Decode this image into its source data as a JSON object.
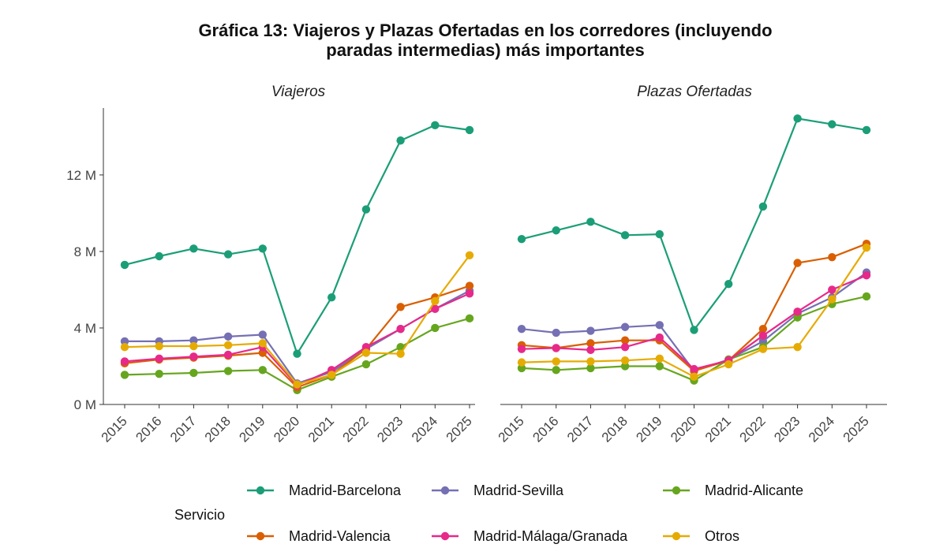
{
  "chart_data": {
    "type": "line",
    "title_lines": [
      "Gráfica 13: Viajeros y Plazas Ofertadas en los corredores (incluyendo",
      "paradas intermedias) más importantes"
    ],
    "ylim": [
      0,
      15.5
    ],
    "y_ticks": [
      0,
      4,
      8,
      12
    ],
    "y_tick_labels": [
      "0 M",
      "4 M",
      "8 M",
      "12 M"
    ],
    "x": [
      "2015",
      "2016",
      "2017",
      "2018",
      "2019",
      "2020",
      "2021",
      "2022",
      "2023",
      "2024",
      "2025"
    ],
    "grid": false,
    "legend": {
      "title": "Servicio",
      "position": "bottom",
      "items": [
        "Madrid-Barcelona",
        "Madrid-Sevilla",
        "Madrid-Alicante",
        "Madrid-Valencia",
        "Madrid-Málaga/Granada",
        "Otros"
      ]
    },
    "colors": {
      "Madrid-Barcelona": "#1b9e77",
      "Madrid-Sevilla": "#7570b3",
      "Madrid-Alicante": "#66a61e",
      "Madrid-Valencia": "#d95f02",
      "Madrid-Málaga/Granada": "#e7298a",
      "Otros": "#e6ab02"
    },
    "panels": [
      {
        "title": "Viajeros",
        "series": [
          {
            "name": "Madrid-Barcelona",
            "values": [
              7.3,
              7.75,
              8.15,
              7.85,
              8.15,
              2.65,
              5.6,
              10.2,
              13.8,
              14.6,
              14.35
            ]
          },
          {
            "name": "Madrid-Sevilla",
            "values": [
              3.3,
              3.3,
              3.35,
              3.55,
              3.65,
              1.1,
              1.7,
              2.9,
              3.95,
              5.0,
              5.95
            ]
          },
          {
            "name": "Madrid-Alicante",
            "values": [
              1.55,
              1.6,
              1.65,
              1.75,
              1.8,
              0.75,
              1.45,
              2.1,
              3.0,
              4.0,
              4.5
            ]
          },
          {
            "name": "Madrid-Valencia",
            "values": [
              2.15,
              2.35,
              2.45,
              2.55,
              2.7,
              0.9,
              1.55,
              2.9,
              5.1,
              5.6,
              6.2
            ]
          },
          {
            "name": "Madrid-Málaga/Granada",
            "values": [
              2.25,
              2.4,
              2.5,
              2.6,
              3.0,
              1.0,
              1.8,
              3.0,
              3.95,
              5.0,
              5.8
            ]
          },
          {
            "name": "Otros",
            "values": [
              3.0,
              3.05,
              3.05,
              3.1,
              3.2,
              1.05,
              1.55,
              2.7,
              2.65,
              5.4,
              7.8
            ]
          }
        ]
      },
      {
        "title": "Plazas Ofertadas",
        "series": [
          {
            "name": "Madrid-Barcelona",
            "values": [
              8.65,
              9.1,
              9.55,
              8.85,
              8.9,
              3.9,
              6.3,
              10.35,
              14.95,
              14.65,
              14.35
            ]
          },
          {
            "name": "Madrid-Sevilla",
            "values": [
              3.95,
              3.75,
              3.85,
              4.05,
              4.15,
              1.75,
              2.35,
              3.3,
              4.75,
              5.6,
              6.9
            ]
          },
          {
            "name": "Madrid-Alicante",
            "values": [
              1.9,
              1.8,
              1.9,
              2.0,
              2.0,
              1.25,
              2.35,
              3.0,
              4.55,
              5.25,
              5.65
            ]
          },
          {
            "name": "Madrid-Valencia",
            "values": [
              3.1,
              2.95,
              3.2,
              3.35,
              3.35,
              1.75,
              2.3,
              3.95,
              7.4,
              7.7,
              8.4
            ]
          },
          {
            "name": "Madrid-Málaga/Granada",
            "values": [
              2.9,
              2.95,
              2.85,
              3.0,
              3.5,
              1.85,
              2.3,
              3.6,
              4.85,
              6.0,
              6.75
            ]
          },
          {
            "name": "Otros",
            "values": [
              2.2,
              2.25,
              2.25,
              2.3,
              2.4,
              1.45,
              2.1,
              2.9,
              3.0,
              5.5,
              8.2
            ]
          }
        ]
      }
    ]
  }
}
